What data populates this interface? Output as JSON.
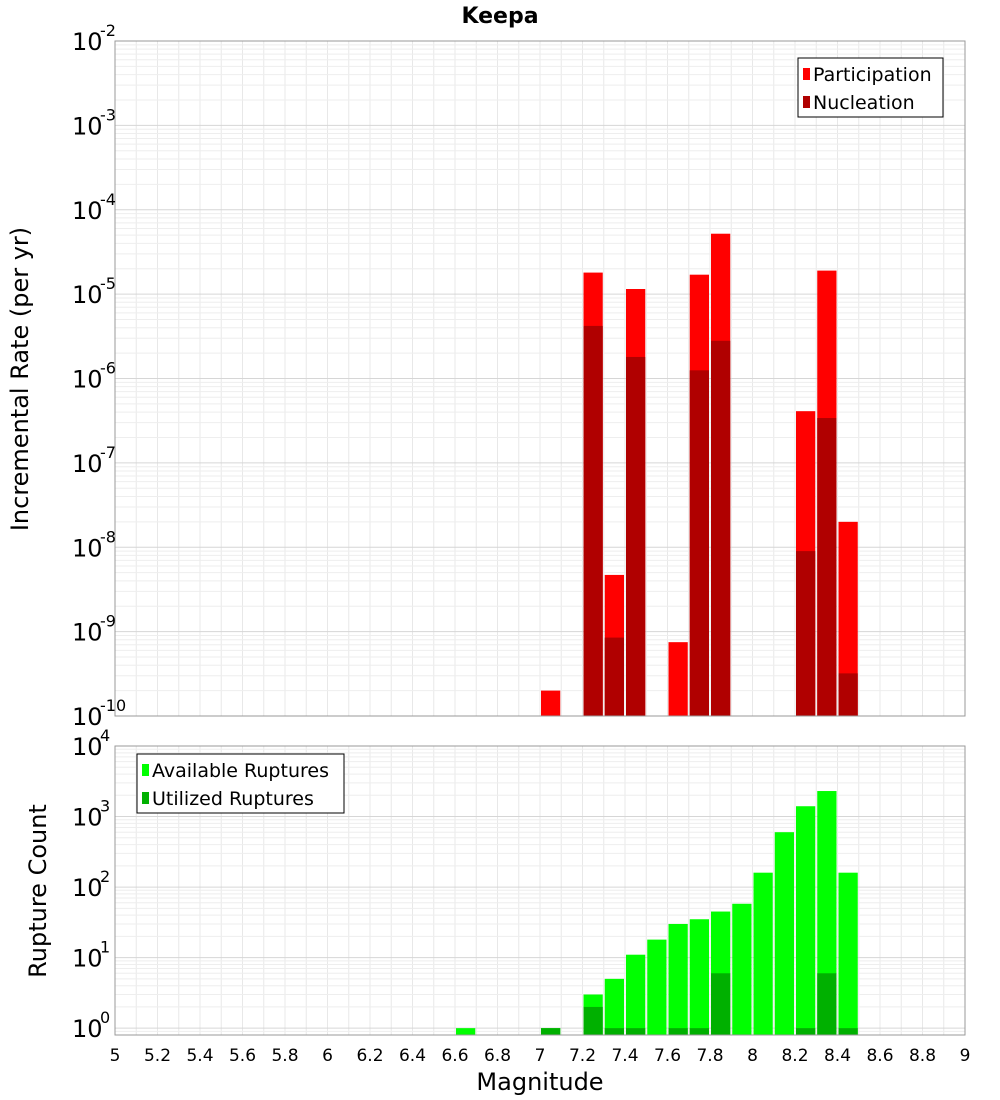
{
  "chart_data": [
    {
      "type": "bar",
      "title": "Keepa",
      "ylabel": "Incremental Rate (per yr)",
      "xlabel": "",
      "yscale": "log",
      "ylim": [
        1e-10,
        0.01
      ],
      "xlim": [
        5,
        9
      ],
      "bin_width": 0.1,
      "legend_position": "top-right",
      "grid": true,
      "x": [
        7.05,
        7.25,
        7.35,
        7.45,
        7.65,
        7.75,
        7.85,
        8.25,
        8.35,
        8.45
      ],
      "series": [
        {
          "name": "Participation",
          "color": "#ff0000",
          "values": [
            2e-10,
            1.8e-05,
            4.7e-09,
            1.15e-05,
            7.5e-10,
            1.7e-05,
            5.2e-05,
            4.1e-07,
            1.9e-05,
            2e-08
          ]
        },
        {
          "name": "Nucleation",
          "color": "#b00000",
          "values": [
            null,
            4.2e-06,
            8.5e-10,
            1.8e-06,
            null,
            1.25e-06,
            2.8e-06,
            9e-09,
            3.4e-07,
            3.2e-10
          ]
        }
      ]
    },
    {
      "type": "bar",
      "title": "",
      "ylabel": "Rupture Count",
      "xlabel": "Magnitude",
      "yscale": "log",
      "ylim": [
        0.8,
        10000
      ],
      "xlim": [
        5,
        9
      ],
      "x_ticks": [
        "5",
        "5.2",
        "5.4",
        "5.6",
        "5.8",
        "6",
        "6.2",
        "6.4",
        "6.6",
        "6.8",
        "7",
        "7.2",
        "7.4",
        "7.6",
        "7.8",
        "8",
        "8.2",
        "8.4",
        "8.6",
        "8.8",
        "9"
      ],
      "bin_width": 0.1,
      "legend_position": "top-left",
      "grid": true,
      "x": [
        6.65,
        7.05,
        7.25,
        7.35,
        7.45,
        7.55,
        7.65,
        7.75,
        7.85,
        7.95,
        8.05,
        8.15,
        8.25,
        8.35,
        8.45
      ],
      "series": [
        {
          "name": "Available Ruptures",
          "color": "#00ff00",
          "values": [
            1,
            1,
            3,
            5,
            11,
            18,
            30,
            35,
            45,
            58,
            160,
            600,
            1400,
            2300,
            160
          ]
        },
        {
          "name": "Utilized Ruptures",
          "color": "#00b000",
          "values": [
            null,
            1,
            2,
            1,
            1,
            null,
            1,
            1,
            6,
            null,
            null,
            null,
            1,
            6,
            1
          ]
        }
      ]
    }
  ]
}
